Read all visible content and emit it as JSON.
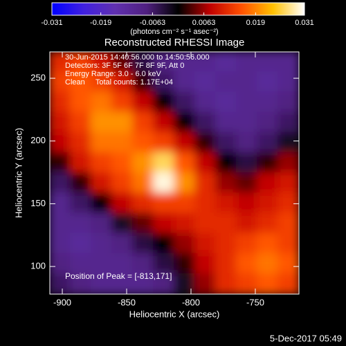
{
  "chart_data": {
    "type": "heatmap",
    "title": "Reconstructed RHESSI Image",
    "xlabel": "Heliocentric X (arcsec)",
    "ylabel": "Heliocentric Y (arcsec)",
    "xlim": [
      -909.7,
      -716.1
    ],
    "ylim": [
      78,
      271
    ],
    "xticks": [
      -900,
      -850,
      -800,
      -750
    ],
    "yticks": [
      100,
      150,
      200,
      250
    ],
    "colorbar": {
      "label": "(photons cm⁻² s⁻¹ asec⁻²)",
      "zlim": [
        -0.031,
        0.031
      ],
      "ticks": [
        -0.031,
        -0.019,
        -0.0063,
        0.0063,
        0.019,
        0.031
      ],
      "colormap": [
        "#0000ff",
        "#4020e0",
        "#6030b0",
        "#502080",
        "#000000",
        "#c00000",
        "#ff5000",
        "#ffc000",
        "#ffffff"
      ]
    },
    "annotations": [
      "30-Jun-2015 14:40:56.000 to 14:50:56.000",
      "Detectors: 3F 5F 6F 7F 8F 9F, Att 0",
      "Energy Range: 3.0 - 6.0 keV",
      "Clean     Total counts: 1.17E+04"
    ],
    "peak_label": "Position of Peak = [-813,171]",
    "footer": "5-Dec-2017 05:49",
    "values": [
      [
        0.012,
        0.014,
        0.01,
        0.004,
        -0.004,
        -0.008,
        -0.01,
        -0.01,
        -0.012,
        -0.01,
        -0.01,
        -0.01
      ],
      [
        0.014,
        0.016,
        0.014,
        0.01,
        0.002,
        -0.006,
        -0.01,
        -0.012,
        -0.01,
        -0.01,
        -0.012,
        -0.01
      ],
      [
        0.012,
        0.016,
        0.018,
        0.014,
        0.008,
        0.0,
        -0.006,
        -0.01,
        -0.012,
        -0.01,
        -0.01,
        -0.008
      ],
      [
        0.01,
        0.014,
        0.02,
        0.02,
        0.014,
        0.008,
        0.0,
        -0.006,
        -0.01,
        -0.01,
        -0.008,
        -0.006
      ],
      [
        0.008,
        0.012,
        0.018,
        0.018,
        0.016,
        0.014,
        0.008,
        0.002,
        -0.006,
        -0.008,
        -0.006,
        -0.002
      ],
      [
        0.002,
        0.01,
        0.014,
        0.016,
        0.02,
        0.026,
        0.016,
        0.008,
        0.0,
        -0.004,
        0.002,
        0.006
      ],
      [
        -0.006,
        0.002,
        0.01,
        0.014,
        0.018,
        0.03,
        0.02,
        0.012,
        0.006,
        0.004,
        0.008,
        0.01
      ],
      [
        -0.01,
        -0.006,
        0.0,
        0.008,
        0.012,
        0.014,
        0.014,
        0.012,
        0.01,
        0.008,
        0.01,
        0.012
      ],
      [
        -0.01,
        -0.01,
        -0.008,
        -0.002,
        0.004,
        0.008,
        0.01,
        0.012,
        0.012,
        0.01,
        0.012,
        0.014
      ],
      [
        -0.01,
        -0.012,
        -0.01,
        -0.008,
        -0.004,
        0.0,
        0.006,
        0.01,
        0.012,
        0.014,
        0.016,
        0.014
      ],
      [
        -0.008,
        -0.01,
        -0.01,
        -0.01,
        -0.008,
        -0.004,
        0.002,
        0.008,
        0.012,
        0.016,
        0.018,
        0.016
      ],
      [
        -0.006,
        -0.008,
        -0.01,
        -0.01,
        -0.01,
        -0.008,
        -0.002,
        0.006,
        0.012,
        0.014,
        0.016,
        0.014
      ]
    ]
  }
}
